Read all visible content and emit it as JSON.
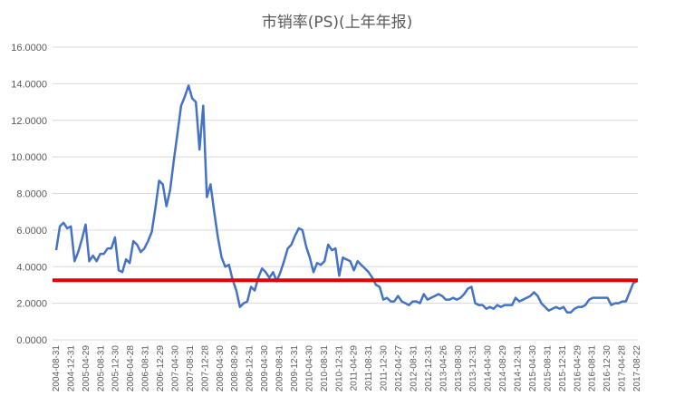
{
  "chart_data": {
    "type": "line",
    "title": "市销率(PS)(上年年报)",
    "xlabel": "",
    "ylabel": "",
    "ylim": [
      0,
      16
    ],
    "y_ticks": [
      "0.0000",
      "2.0000",
      "4.0000",
      "6.0000",
      "8.0000",
      "10.0000",
      "12.0000",
      "14.0000",
      "16.0000"
    ],
    "x_tick_labels": [
      "2004-08-31",
      "2004-12-31",
      "2005-04-29",
      "2005-08-31",
      "2005-12-30",
      "2006-04-28",
      "2006-08-31",
      "2006-12-29",
      "2007-04-30",
      "2007-08-31",
      "2007-12-28",
      "2008-04-30",
      "2008-08-29",
      "2008-12-31",
      "2009-04-30",
      "2009-08-31",
      "2009-12-31",
      "2010-04-30",
      "2010-08-31",
      "2010-12-31",
      "2011-04-29",
      "2011-08-31",
      "2011-12-30",
      "2012-04-27",
      "2012-08-31",
      "2012-12-31",
      "2013-04-26",
      "2013-08-30",
      "2013-12-31",
      "2014-04-30",
      "2014-08-29",
      "2014-12-31",
      "2015-04-30",
      "2015-08-31",
      "2015-12-31",
      "2016-04-29",
      "2016-08-31",
      "2016-12-30",
      "2017-04-28",
      "2017-08-22"
    ],
    "grid": true,
    "legend": "none",
    "series": [
      {
        "color": "#4472c4",
        "values": [
          4.9,
          6.2,
          6.4,
          6.1,
          6.2,
          4.3,
          4.8,
          5.5,
          6.3,
          4.3,
          4.6,
          4.3,
          4.7,
          4.7,
          5.0,
          5.0,
          5.6,
          3.8,
          3.7,
          4.4,
          4.2,
          5.4,
          5.2,
          4.8,
          5.0,
          5.4,
          5.9,
          7.2,
          8.7,
          8.5,
          7.3,
          8.2,
          9.8,
          11.3,
          12.8,
          13.3,
          13.9,
          13.2,
          13.0,
          10.4,
          12.8,
          7.8,
          8.5,
          7.0,
          5.6,
          4.5,
          4.0,
          4.1,
          3.3,
          2.7,
          1.8,
          2.0,
          2.1,
          2.9,
          2.7,
          3.4,
          3.9,
          3.7,
          3.4,
          3.7,
          3.2,
          3.7,
          4.3,
          5.0,
          5.2,
          5.7,
          6.1,
          6.0,
          5.1,
          4.5,
          3.7,
          4.2,
          4.1,
          4.3,
          5.2,
          4.9,
          5.0,
          3.5,
          4.5,
          4.4,
          4.3,
          3.8,
          4.3,
          4.1,
          3.9,
          3.7,
          3.4,
          3.0,
          2.9,
          2.2,
          2.3,
          2.1,
          2.1,
          2.4,
          2.1,
          2.0,
          1.9,
          2.1,
          2.1,
          2.0,
          2.5,
          2.2,
          2.3,
          2.4,
          2.5,
          2.4,
          2.2,
          2.2,
          2.3,
          2.2,
          2.3,
          2.5,
          2.8,
          2.9,
          2.0,
          1.9,
          1.9,
          1.7,
          1.8,
          1.7,
          1.9,
          1.8,
          1.9,
          1.9,
          1.9,
          2.3,
          2.1,
          2.2,
          2.3,
          2.4,
          2.6,
          2.4,
          2.0,
          1.8,
          1.6,
          1.7,
          1.8,
          1.7,
          1.8,
          1.5,
          1.5,
          1.7,
          1.8,
          1.8,
          1.9,
          2.2,
          2.3,
          2.3,
          2.3,
          2.3,
          2.3,
          1.9,
          2.0,
          2.0,
          2.1,
          2.1,
          2.6,
          3.1,
          3.2
        ]
      },
      {
        "color": "#e0000a",
        "values": [
          3.26,
          3.26
        ]
      }
    ]
  }
}
